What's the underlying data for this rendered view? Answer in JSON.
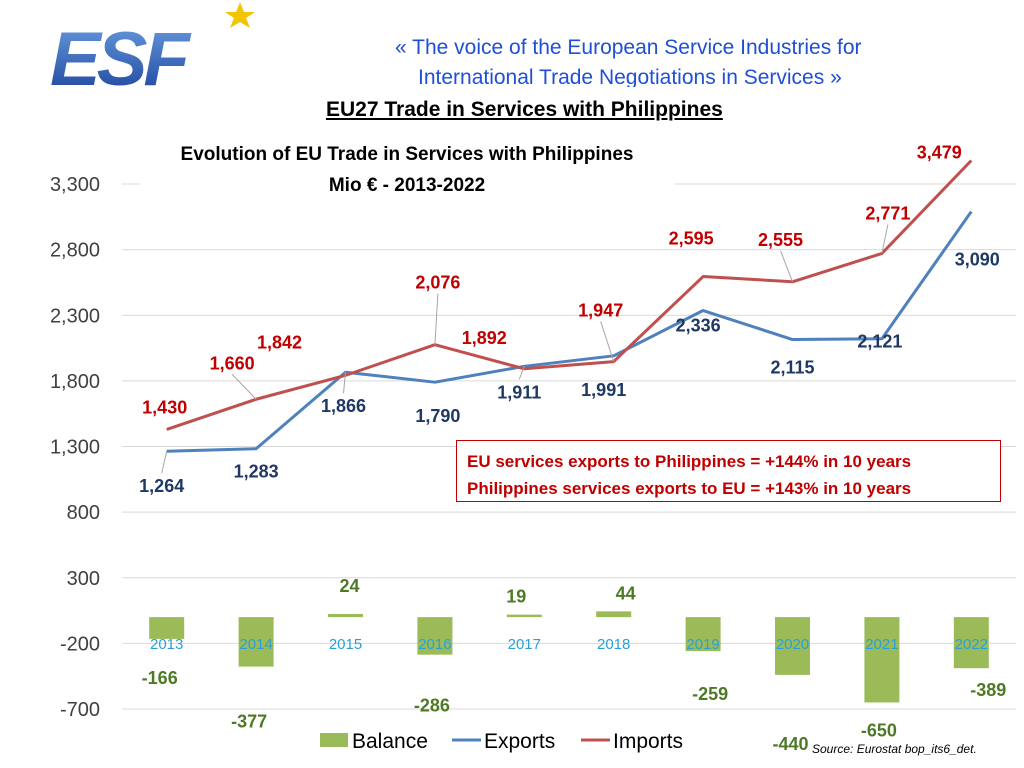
{
  "header": {
    "tagline_line1": "« The voice of the European Service Industries for",
    "tagline_line2": "International Trade Negotiations in Services »",
    "page_title": "EU27 Trade in Services with Philippines",
    "logo_text": "ESF"
  },
  "chart_data": {
    "type": "bar",
    "title": "Evolution of EU Trade in Services with Philippines",
    "subtitle": "Mio € - 2013-2022",
    "categories": [
      "2013",
      "2014",
      "2015",
      "2016",
      "2017",
      "2018",
      "2019",
      "2020",
      "2021",
      "2022"
    ],
    "series": [
      {
        "name": "Balance",
        "type": "bar",
        "values": [
          -166,
          -377,
          24,
          -286,
          19,
          44,
          -259,
          -440,
          -650,
          -389
        ]
      },
      {
        "name": "Exports",
        "type": "line",
        "values": [
          1264,
          1283,
          1866,
          1790,
          1911,
          1991,
          2336,
          2115,
          2121,
          3090
        ]
      },
      {
        "name": "Imports",
        "type": "line",
        "values": [
          1430,
          1660,
          1842,
          2076,
          1892,
          1947,
          2595,
          2555,
          2771,
          3479
        ]
      }
    ],
    "ylim": [
      -700,
      3300
    ],
    "yticks": [
      -700,
      -200,
      300,
      800,
      1300,
      1800,
      2300,
      2800,
      3300
    ],
    "grid": true,
    "legend": "bottom",
    "colors": {
      "Balance": "#9bbb59",
      "Exports": "#4f81bd",
      "Imports": "#c0504d"
    }
  },
  "annotation": {
    "line1": "EU services exports to Philippines = +144% in 10 years",
    "line2": "Philippines services exports to EU =  +143% in 10 years"
  },
  "source": "Source: Eurostat bop_its6_det."
}
